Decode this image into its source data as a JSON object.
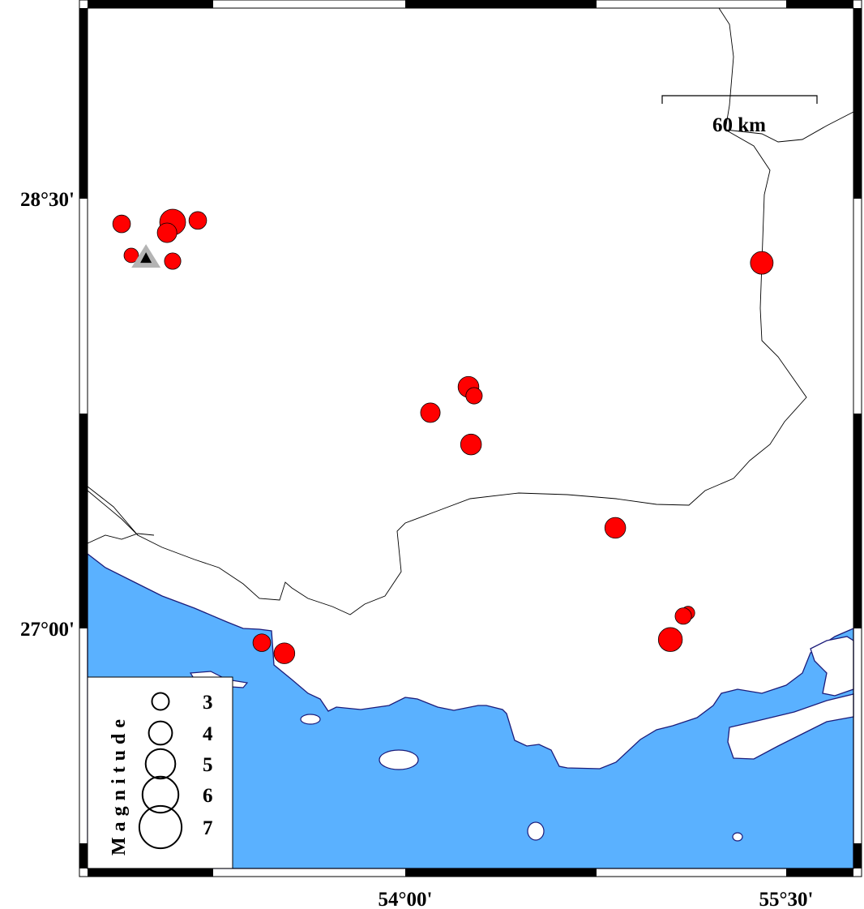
{
  "map": {
    "lon_range": [
      52.75,
      55.765
    ],
    "lat_range": [
      26.06,
      28.73
    ],
    "colors": {
      "sea": "#5ab1ff",
      "land": "#ffffff",
      "coastline": "#1c1c7a",
      "event": "#ff0000",
      "station": "#b4b4b4"
    },
    "lat_ticks": [
      {
        "value": 28.5,
        "label": "28°30'"
      },
      {
        "value": 27.0,
        "label": "27°00'"
      }
    ],
    "lon_ticks": [
      {
        "value": 54.0,
        "label": "54°00'"
      },
      {
        "value": 55.5,
        "label": "55°30'"
      }
    ],
    "scale_bar": {
      "label": "60 km",
      "length_km": 60
    },
    "station": {
      "lon": 52.979,
      "lat": 28.296,
      "icon": "triangle-icon"
    },
    "events": [
      {
        "lon": 52.883,
        "lat": 28.412,
        "mag": 3.1
      },
      {
        "lon": 53.084,
        "lat": 28.418,
        "mag": 4.4
      },
      {
        "lon": 53.183,
        "lat": 28.424,
        "mag": 3.1
      },
      {
        "lon": 53.062,
        "lat": 28.381,
        "mag": 3.4
      },
      {
        "lon": 52.921,
        "lat": 28.302,
        "mag": 2.6
      },
      {
        "lon": 53.084,
        "lat": 28.282,
        "mag": 2.9
      },
      {
        "lon": 55.404,
        "lat": 28.276,
        "mag": 3.9
      },
      {
        "lon": 54.249,
        "lat": 27.843,
        "mag": 3.6
      },
      {
        "lon": 54.271,
        "lat": 27.812,
        "mag": 2.9
      },
      {
        "lon": 54.099,
        "lat": 27.753,
        "mag": 3.4
      },
      {
        "lon": 54.259,
        "lat": 27.642,
        "mag": 3.6
      },
      {
        "lon": 54.827,
        "lat": 27.351,
        "mag": 3.6
      },
      {
        "lon": 55.114,
        "lat": 27.054,
        "mag": 2.4
      },
      {
        "lon": 55.095,
        "lat": 27.043,
        "mag": 2.9
      },
      {
        "lon": 55.044,
        "lat": 26.961,
        "mag": 4.1
      },
      {
        "lon": 53.435,
        "lat": 26.95,
        "mag": 3.1
      },
      {
        "lon": 53.524,
        "lat": 26.913,
        "mag": 3.6
      }
    ]
  },
  "legend": {
    "title": "Magnitude",
    "items": [
      {
        "mag": 3,
        "label": "3"
      },
      {
        "mag": 4,
        "label": "4"
      },
      {
        "mag": 5,
        "label": "5"
      },
      {
        "mag": 6,
        "label": "6"
      },
      {
        "mag": 7,
        "label": "7"
      }
    ]
  }
}
